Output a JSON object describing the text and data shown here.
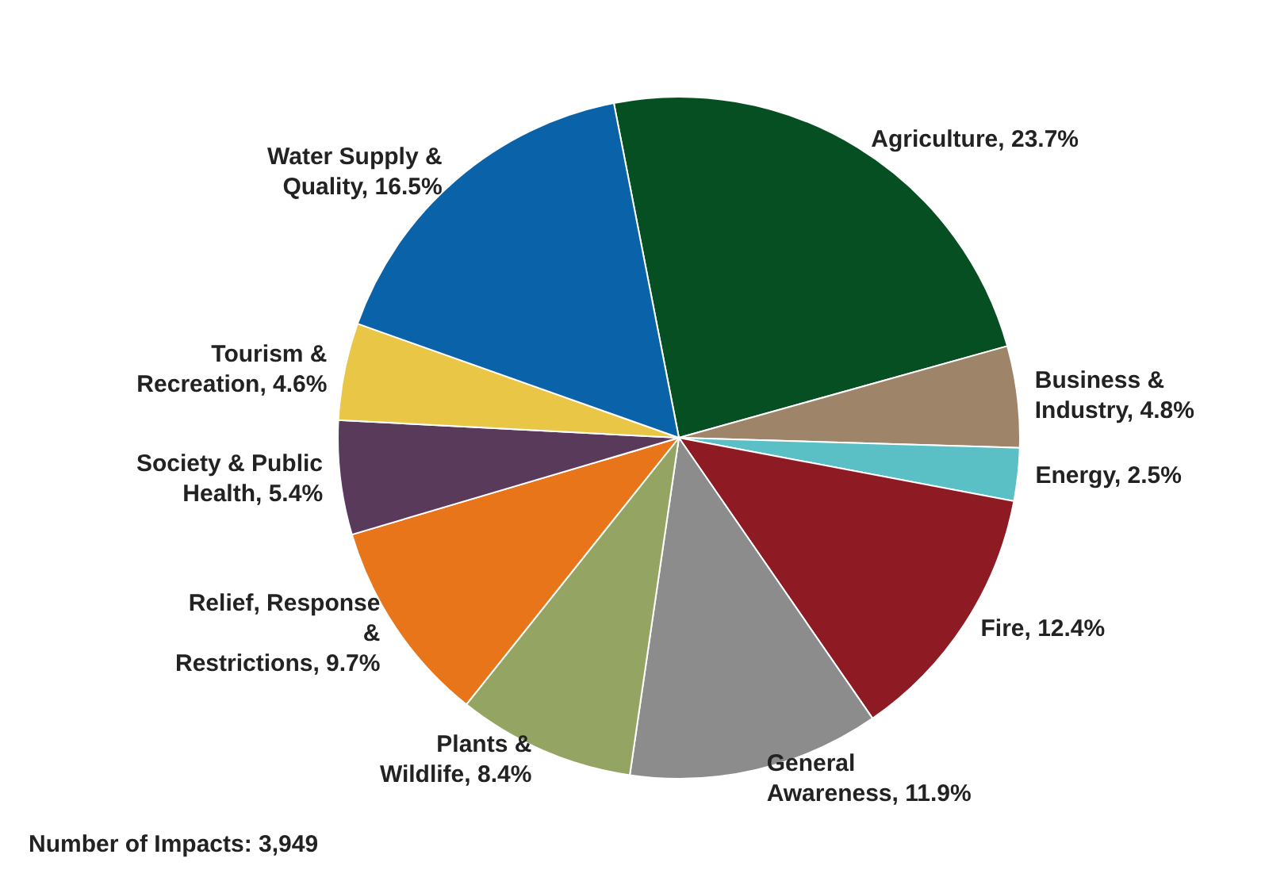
{
  "chart_data": {
    "type": "pie",
    "categories": [
      "Agriculture",
      "Business & Industry",
      "Energy",
      "Fire",
      "General Awareness",
      "Plants & Wildlife",
      "Relief, Response & Restrictions",
      "Society & Public Health",
      "Tourism & Recreation",
      "Water Supply & Quality"
    ],
    "values": [
      23.7,
      4.8,
      2.5,
      12.4,
      11.9,
      8.4,
      9.7,
      5.4,
      4.6,
      16.5
    ],
    "value_labels": [
      "23.7%",
      "4.8%",
      "2.5%",
      "12.4%",
      "11.9%",
      "8.4%",
      "9.7%",
      "5.4%",
      "4.6%",
      "16.5%"
    ],
    "colors": [
      "#064f23",
      "#9e8468",
      "#5bbfc6",
      "#8e1b23",
      "#8c8c8c",
      "#94a462",
      "#e8751a",
      "#5a3a5a",
      "#e9c646",
      "#0a63a8"
    ],
    "annotations": [
      "Number of Impacts: 3,949"
    ]
  }
}
